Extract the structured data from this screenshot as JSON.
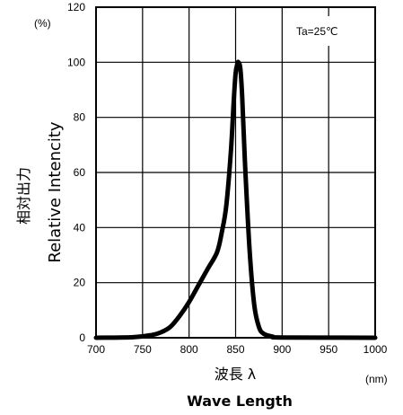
{
  "chart_data": {
    "type": "line",
    "title": "",
    "annotation": "Ta=25℃",
    "xlabel_jp": "波長 λ",
    "xlabel_en": "Wave Length",
    "xunit": "(nm)",
    "ylabel_jp": "相対出力",
    "ylabel_en": "Relative Intencity",
    "yunit": "(%)",
    "xlim": [
      700,
      1000
    ],
    "ylim": [
      0,
      120
    ],
    "xticks": [
      "700",
      "750",
      "800",
      "850",
      "900",
      "950",
      "1000"
    ],
    "yticks": [
      "0",
      "20",
      "40",
      "60",
      "80",
      "100",
      "120"
    ],
    "grid": true,
    "legend": "none",
    "series": [
      {
        "color": "#000000",
        "x": [
          700,
          740,
          760,
          770,
          780,
          790,
          800,
          810,
          820,
          830,
          835,
          840,
          845,
          848,
          850,
          852,
          853,
          855,
          857,
          860,
          865,
          870,
          875,
          880,
          890,
          900,
          1000
        ],
        "y": [
          0,
          0.2,
          1,
          2,
          4,
          8,
          13,
          19,
          25,
          31,
          38,
          48,
          68,
          86,
          96,
          99.5,
          100,
          98,
          88,
          64,
          32,
          12,
          4,
          1.5,
          0.4,
          0.1,
          0
        ]
      }
    ]
  }
}
